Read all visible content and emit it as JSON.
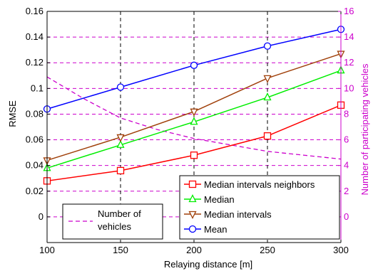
{
  "chart_data": {
    "type": "line",
    "xlabel": "Relaying distance [m]",
    "ylabel_left": "RMSE",
    "ylabel_right": "Number of participating vehicles",
    "x_ticks": [
      100,
      150,
      200,
      250,
      300
    ],
    "xlim": [
      100,
      300
    ],
    "ylim_left": [
      -0.02,
      0.16
    ],
    "ylim_right": [
      -2,
      16
    ],
    "left_ticks": [
      -0.02,
      0,
      0.02,
      0.04,
      0.06,
      0.08,
      0.1,
      0.12,
      0.14,
      0.16
    ],
    "left_tick_labels": [
      "",
      "0",
      "0.02",
      "0.04",
      "0.06",
      "0.08",
      "0.1",
      "0.12",
      "0.14",
      "0.16"
    ],
    "right_ticks": [
      0,
      2,
      4,
      6,
      8,
      10,
      12,
      14,
      16
    ],
    "right_tick_labels": [
      "0",
      "2",
      "4",
      "6",
      "8",
      "10",
      "12",
      "14",
      "16"
    ],
    "grid": {
      "vertical": "dashed black",
      "horizontal": "dashed magenta"
    },
    "series": [
      {
        "name": "Median intervals neighbors",
        "color": "#ff0000",
        "marker": "square",
        "x": [
          100,
          150,
          200,
          250,
          300
        ],
        "values": [
          0.028,
          0.036,
          0.048,
          0.063,
          0.087
        ]
      },
      {
        "name": "Median",
        "color": "#00ee00",
        "marker": "triangle-up",
        "x": [
          100,
          150,
          200,
          250,
          300
        ],
        "values": [
          0.038,
          0.056,
          0.074,
          0.093,
          0.114
        ]
      },
      {
        "name": "Median intervals",
        "color": "#a0400a",
        "marker": "triangle-down",
        "x": [
          100,
          150,
          200,
          250,
          300
        ],
        "values": [
          0.044,
          0.062,
          0.082,
          0.108,
          0.127
        ]
      },
      {
        "name": "Mean",
        "color": "#0000ff",
        "marker": "circle",
        "x": [
          100,
          150,
          200,
          250,
          300
        ],
        "values": [
          0.084,
          0.101,
          0.118,
          0.133,
          0.146
        ]
      }
    ],
    "right_series": {
      "name": "Number of vehicles",
      "legend_lines": [
        "Number of",
        "vehicles"
      ],
      "color": "#cc00cc",
      "style": "dashed",
      "x": [
        100,
        125,
        150,
        175,
        200,
        225,
        250,
        275,
        300
      ],
      "values": [
        10.9,
        9.2,
        7.7,
        6.8,
        6.1,
        5.6,
        5.1,
        4.8,
        4.5
      ]
    },
    "legend_position": "bottom-right",
    "secondary_legend_position": "bottom-left"
  }
}
